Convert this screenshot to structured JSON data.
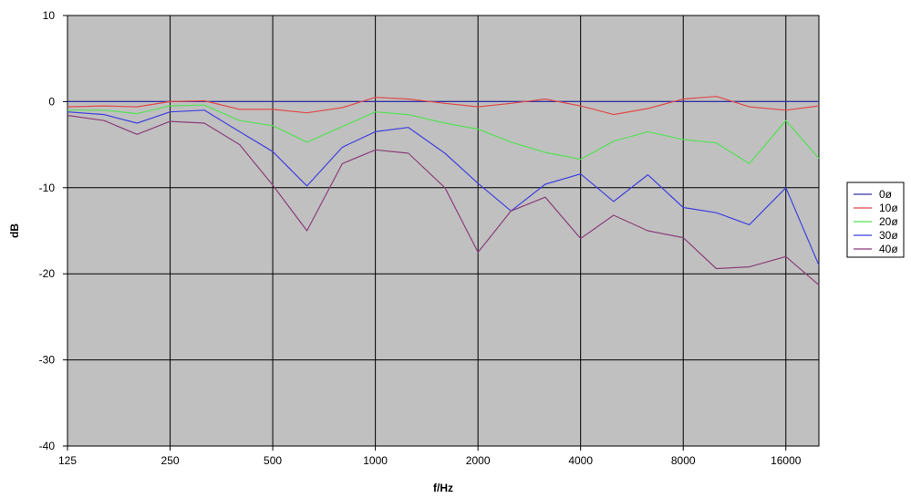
{
  "chart_data": {
    "type": "line",
    "title": "",
    "xlabel": "f/Hz",
    "ylabel": "dB",
    "x_scale": "log2",
    "xlim": [
      125,
      20000
    ],
    "ylim": [
      -40,
      10
    ],
    "x_ticks": [
      125,
      250,
      500,
      1000,
      2000,
      4000,
      8000,
      16000
    ],
    "x_tick_labels": [
      "125",
      "250",
      "500",
      "1000",
      "2000",
      "4000",
      "8000",
      "16000"
    ],
    "y_ticks": [
      10,
      0,
      -10,
      -20,
      -30,
      -40
    ],
    "y_tick_labels": [
      "10",
      "0",
      "-10",
      "-20",
      "-30",
      "-40"
    ],
    "grid": true,
    "background": "#c0c0c0",
    "legend_position": "right",
    "x": [
      125,
      160,
      200,
      250,
      315,
      400,
      500,
      630,
      800,
      1000,
      1250,
      1600,
      2000,
      2500,
      3150,
      4000,
      5000,
      6300,
      8000,
      10000,
      12500,
      16000,
      20000
    ],
    "series": [
      {
        "name": "0ø",
        "color": "#3333aa",
        "values": [
          0,
          0,
          0,
          0,
          0,
          0,
          0,
          0,
          0,
          0,
          0,
          0,
          0,
          0,
          0,
          0,
          0,
          0,
          0,
          0,
          0,
          0,
          0
        ]
      },
      {
        "name": "10ø",
        "color": "#e04a4a",
        "values": [
          -0.6,
          -0.5,
          -0.6,
          0,
          0.1,
          -0.9,
          -0.9,
          -1.3,
          -0.7,
          0.5,
          0.3,
          -0.2,
          -0.6,
          -0.2,
          0.3,
          -0.5,
          -1.5,
          -0.8,
          0.3,
          0.6,
          -0.6,
          -1.0,
          -0.5
        ]
      },
      {
        "name": "20ø",
        "color": "#55e055",
        "values": [
          -1.0,
          -1.0,
          -1.4,
          -0.5,
          -0.4,
          -2.2,
          -2.8,
          -4.7,
          -2.9,
          -1.2,
          -1.5,
          -2.5,
          -3.2,
          -4.7,
          -5.9,
          -6.7,
          -4.6,
          -3.5,
          -4.4,
          -4.8,
          -7.2,
          -2.2,
          -6.6
        ]
      },
      {
        "name": "30ø",
        "color": "#3f3fdf",
        "values": [
          -1.2,
          -1.5,
          -2.5,
          -1.2,
          -1.0,
          -3.5,
          -5.8,
          -9.8,
          -5.3,
          -3.5,
          -3.0,
          -6.0,
          -9.5,
          -12.7,
          -9.6,
          -8.4,
          -11.6,
          -8.5,
          -12.3,
          -12.9,
          -14.3,
          -10.0,
          -19.0
        ]
      },
      {
        "name": "40ø",
        "color": "#8a3e7a",
        "values": [
          -1.6,
          -2.2,
          -3.8,
          -2.3,
          -2.5,
          -5.0,
          -9.7,
          -15.0,
          -7.2,
          -5.6,
          -6.0,
          -10.0,
          -17.5,
          -12.7,
          -11.1,
          -15.9,
          -13.2,
          -15.0,
          -15.8,
          -19.4,
          -19.2,
          -18.0,
          -21.3
        ]
      }
    ]
  }
}
